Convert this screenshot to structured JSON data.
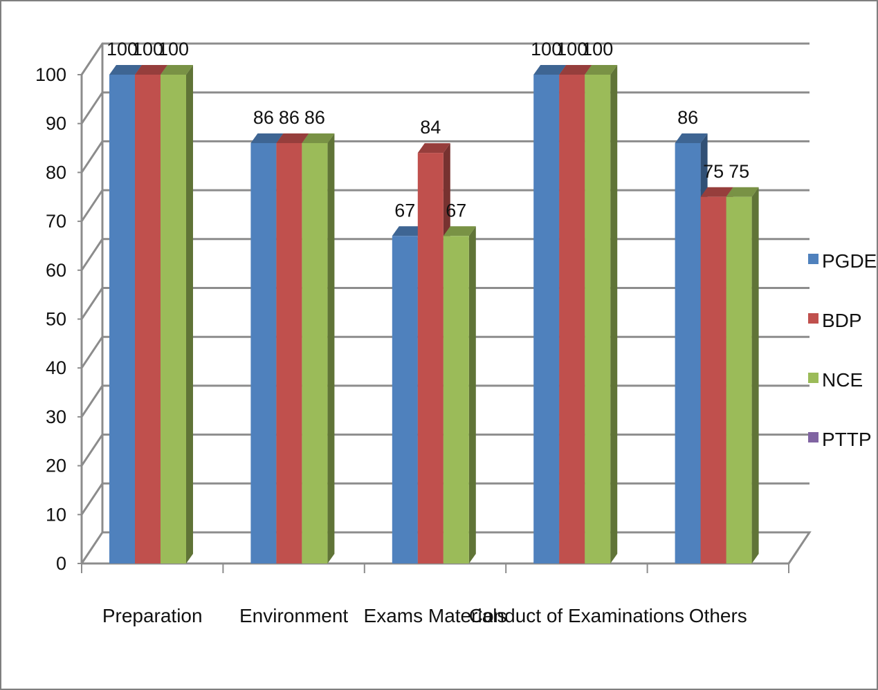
{
  "chart_data": {
    "type": "bar",
    "title": "",
    "xlabel": "",
    "ylabel": "",
    "ylim": [
      0,
      100
    ],
    "yticks": [
      "0",
      "10",
      "20",
      "30",
      "40",
      "50",
      "60",
      "70",
      "80",
      "90",
      "100"
    ],
    "grid": true,
    "legend_position": "right",
    "categories": [
      "Preparation",
      "Environment",
      "Exams Materials",
      "Conduct of Examinations",
      "Others"
    ],
    "series": [
      {
        "name": "PGDE",
        "color": "#4F81BD",
        "values": [
          100,
          86,
          67,
          100,
          86
        ]
      },
      {
        "name": "BDP",
        "color": "#C0504D",
        "values": [
          100,
          86,
          84,
          100,
          75
        ]
      },
      {
        "name": "NCE",
        "color": "#9BBB59",
        "values": [
          100,
          86,
          67,
          100,
          75
        ]
      },
      {
        "name": "PTTP",
        "color": "#8064A2",
        "values": [
          null,
          null,
          null,
          null,
          null
        ]
      }
    ]
  }
}
